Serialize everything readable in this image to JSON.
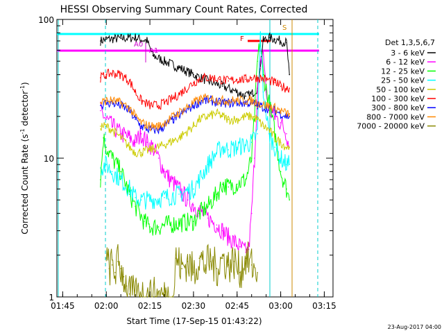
{
  "chart_data": {
    "type": "line",
    "title": "HESSI Observing Summary Count Rates, Corrected",
    "xlabel": "Start Time (17-Sep-15 01:43:22)",
    "ylabel_main": "Corrected Count Rate (s",
    "ylabel_sup": "-1",
    "ylabel_tail": " detector",
    "ylabel_sup2": "-1",
    "ylabel_close": ")",
    "y_scale": "log",
    "ylim": [
      1,
      100
    ],
    "xlim_minutes": [
      103,
      181
    ],
    "xticks": [
      {
        "label": "01:45",
        "minutes": 105
      },
      {
        "label": "02:00",
        "minutes": 120
      },
      {
        "label": "02:15",
        "minutes": 135
      },
      {
        "label": "02:30",
        "minutes": 150
      },
      {
        "label": "02:45",
        "minutes": 165
      },
      {
        "label": "03:00",
        "minutes": 180
      },
      {
        "label": "03:15",
        "minutes": 195
      }
    ],
    "yticks": [
      {
        "label": "1",
        "value": 1
      },
      {
        "label": "10",
        "value": 10
      },
      {
        "label": "100",
        "value": 100
      }
    ],
    "legend_position": "right",
    "legend_title": "Det 1,3,5,6,7",
    "footer": "23-Aug-2017 04:00",
    "series": [
      {
        "name": "3 - 6 keV",
        "color": "#000000",
        "points": [
          [
            118,
            70
          ],
          [
            120,
            72
          ],
          [
            125,
            73
          ],
          [
            130,
            74
          ],
          [
            134,
            70
          ],
          [
            136,
            55
          ],
          [
            140,
            50
          ],
          [
            145,
            45
          ],
          [
            150,
            40
          ],
          [
            155,
            36
          ],
          [
            160,
            33
          ],
          [
            165,
            30
          ],
          [
            168,
            28
          ],
          [
            170,
            29
          ],
          [
            172,
            32
          ],
          [
            174,
            70
          ],
          [
            176,
            74
          ],
          [
            178,
            72
          ],
          [
            180,
            70
          ],
          [
            182,
            68
          ],
          [
            183,
            40
          ]
        ]
      },
      {
        "name": "6 - 12 keV",
        "color": "#ff00ff",
        "points": [
          [
            118,
            22
          ],
          [
            120,
            19
          ],
          [
            122,
            17
          ],
          [
            125,
            15
          ],
          [
            128,
            14
          ],
          [
            130,
            13
          ],
          [
            132,
            15
          ],
          [
            134,
            13
          ],
          [
            136,
            12
          ],
          [
            138,
            10
          ],
          [
            140,
            8
          ],
          [
            142,
            7
          ],
          [
            145,
            6
          ],
          [
            148,
            5
          ],
          [
            150,
            4.6
          ],
          [
            152,
            4.2
          ],
          [
            155,
            3.7
          ],
          [
            158,
            3.3
          ],
          [
            160,
            3.0
          ],
          [
            162,
            2.7
          ],
          [
            164,
            2.5
          ],
          [
            166,
            2.3
          ],
          [
            168,
            2.1
          ],
          [
            169,
            2.2
          ],
          [
            170,
            4
          ],
          [
            171,
            10
          ],
          [
            172,
            30
          ],
          [
            173,
            45
          ],
          [
            174,
            60
          ],
          [
            175,
            30
          ],
          [
            176,
            22
          ],
          [
            178,
            20
          ],
          [
            180,
            18
          ],
          [
            182,
            15
          ],
          [
            183,
            12
          ]
        ]
      },
      {
        "name": "12 - 25 keV",
        "color": "#00ff00",
        "points": [
          [
            118,
            7
          ],
          [
            119,
            14
          ],
          [
            120,
            12
          ],
          [
            122,
            10
          ],
          [
            125,
            8
          ],
          [
            128,
            5.5
          ],
          [
            130,
            4.5
          ],
          [
            133,
            3.5
          ],
          [
            135,
            3.2
          ],
          [
            138,
            3.2
          ],
          [
            140,
            3.3
          ],
          [
            145,
            3.4
          ],
          [
            150,
            3.5
          ],
          [
            152,
            4
          ],
          [
            155,
            4.5
          ],
          [
            158,
            5.5
          ],
          [
            160,
            6.5
          ],
          [
            162,
            6.2
          ],
          [
            165,
            6.5
          ],
          [
            168,
            7
          ],
          [
            170,
            10
          ],
          [
            171,
            20
          ],
          [
            172,
            50
          ],
          [
            173,
            70
          ],
          [
            174,
            40
          ],
          [
            176,
            25
          ],
          [
            178,
            15
          ],
          [
            180,
            8
          ],
          [
            182,
            6
          ],
          [
            183,
            5
          ]
        ]
      },
      {
        "name": "25 - 50 keV",
        "color": "#00ffff",
        "points": [
          [
            118,
            8.5
          ],
          [
            120,
            9
          ],
          [
            122,
            8
          ],
          [
            125,
            7
          ],
          [
            128,
            6
          ],
          [
            130,
            5.2
          ],
          [
            132,
            5
          ],
          [
            135,
            5
          ],
          [
            140,
            5.2
          ],
          [
            145,
            5.5
          ],
          [
            150,
            6
          ],
          [
            152,
            7
          ],
          [
            155,
            9
          ],
          [
            158,
            11
          ],
          [
            160,
            12
          ],
          [
            162,
            11.5
          ],
          [
            165,
            12
          ],
          [
            168,
            12.5
          ],
          [
            170,
            13
          ],
          [
            172,
            15
          ],
          [
            173,
            80
          ],
          [
            174,
            30
          ],
          [
            176,
            15
          ],
          [
            178,
            12
          ],
          [
            180,
            10
          ],
          [
            182,
            9
          ],
          [
            183,
            9
          ]
        ]
      },
      {
        "name": "50 - 100 keV",
        "color": "#cccc00",
        "points": [
          [
            118,
            17
          ],
          [
            120,
            17
          ],
          [
            122,
            16
          ],
          [
            125,
            14
          ],
          [
            128,
            12
          ],
          [
            130,
            11
          ],
          [
            132,
            11
          ],
          [
            135,
            11.5
          ],
          [
            138,
            12
          ],
          [
            140,
            12.5
          ],
          [
            145,
            14
          ],
          [
            150,
            17
          ],
          [
            152,
            19
          ],
          [
            155,
            20
          ],
          [
            158,
            21
          ],
          [
            160,
            20
          ],
          [
            162,
            19
          ],
          [
            165,
            19
          ],
          [
            168,
            20
          ],
          [
            170,
            20
          ],
          [
            172,
            19
          ],
          [
            174,
            17
          ],
          [
            176,
            16
          ],
          [
            178,
            14
          ],
          [
            180,
            13
          ],
          [
            182,
            12
          ],
          [
            183,
            12
          ]
        ]
      },
      {
        "name": "100 - 300 keV",
        "color": "#ff0000",
        "points": [
          [
            118,
            38
          ],
          [
            120,
            40
          ],
          [
            122,
            41
          ],
          [
            125,
            40
          ],
          [
            128,
            36
          ],
          [
            130,
            30
          ],
          [
            132,
            26
          ],
          [
            135,
            24
          ],
          [
            138,
            24
          ],
          [
            140,
            25
          ],
          [
            143,
            27
          ],
          [
            146,
            30
          ],
          [
            150,
            35
          ],
          [
            153,
            38
          ],
          [
            156,
            38
          ],
          [
            159,
            37
          ],
          [
            162,
            36
          ],
          [
            165,
            37
          ],
          [
            168,
            37
          ],
          [
            170,
            38
          ],
          [
            172,
            38
          ],
          [
            175,
            37
          ],
          [
            178,
            35
          ],
          [
            180,
            33
          ],
          [
            182,
            32
          ],
          [
            183,
            32
          ]
        ]
      },
      {
        "name": "300 - 800 keV",
        "color": "#0000ff",
        "points": [
          [
            118,
            24
          ],
          [
            120,
            25
          ],
          [
            122,
            25
          ],
          [
            125,
            24
          ],
          [
            128,
            22
          ],
          [
            130,
            19
          ],
          [
            132,
            17
          ],
          [
            135,
            16
          ],
          [
            138,
            16
          ],
          [
            140,
            17
          ],
          [
            143,
            19
          ],
          [
            146,
            21
          ],
          [
            150,
            24
          ],
          [
            153,
            26
          ],
          [
            156,
            26
          ],
          [
            159,
            25
          ],
          [
            162,
            25
          ],
          [
            165,
            25
          ],
          [
            168,
            25
          ],
          [
            170,
            25
          ],
          [
            172,
            24
          ],
          [
            175,
            23
          ],
          [
            178,
            22
          ],
          [
            180,
            21
          ],
          [
            182,
            20
          ],
          [
            183,
            20
          ]
        ]
      },
      {
        "name": "800 - 7000 keV",
        "color": "#ff8800",
        "points": [
          [
            118,
            25
          ],
          [
            120,
            26
          ],
          [
            122,
            26
          ],
          [
            125,
            25
          ],
          [
            128,
            23
          ],
          [
            130,
            20
          ],
          [
            132,
            18
          ],
          [
            135,
            17
          ],
          [
            138,
            17
          ],
          [
            140,
            18
          ],
          [
            143,
            20
          ],
          [
            146,
            22
          ],
          [
            150,
            25
          ],
          [
            153,
            27
          ],
          [
            156,
            27
          ],
          [
            159,
            26
          ],
          [
            162,
            26
          ],
          [
            165,
            26
          ],
          [
            168,
            26
          ],
          [
            170,
            26
          ],
          [
            172,
            25
          ],
          [
            175,
            24
          ],
          [
            178,
            23
          ],
          [
            180,
            22
          ],
          [
            182,
            21
          ],
          [
            183,
            21
          ]
        ]
      },
      {
        "name": "7000 - 20000 keV",
        "color": "#888800",
        "points": [
          [
            120,
            1.9
          ],
          [
            121,
            1.6
          ],
          [
            122,
            1.7
          ],
          [
            123,
            1.5
          ],
          [
            124,
            1.8
          ],
          [
            125,
            1.6
          ],
          [
            126,
            1.4
          ],
          [
            127,
            1.2
          ],
          [
            128,
            1.05
          ],
          [
            143,
            1.0
          ],
          [
            144,
            1.9
          ],
          [
            146,
            1.6
          ],
          [
            148,
            1.8
          ],
          [
            150,
            1.5
          ],
          [
            152,
            1.9
          ],
          [
            154,
            1.7
          ],
          [
            156,
            1.8
          ],
          [
            158,
            1.6
          ],
          [
            160,
            1.9
          ],
          [
            162,
            1.7
          ],
          [
            164,
            1.8
          ],
          [
            166,
            1.5
          ],
          [
            168,
            1.9
          ],
          [
            170,
            1.7
          ],
          [
            172,
            1.5
          ]
        ]
      }
    ],
    "annotations": [
      {
        "label": "A0",
        "color": "#cc00cc",
        "minutes": 133
      },
      {
        "label": "A1",
        "color": "#cc00cc",
        "minutes": 136
      },
      {
        "label": "F",
        "color": "#cc0000",
        "minutes": 172
      },
      {
        "label": "S",
        "color": "#cc8800",
        "minutes": 181
      }
    ]
  }
}
